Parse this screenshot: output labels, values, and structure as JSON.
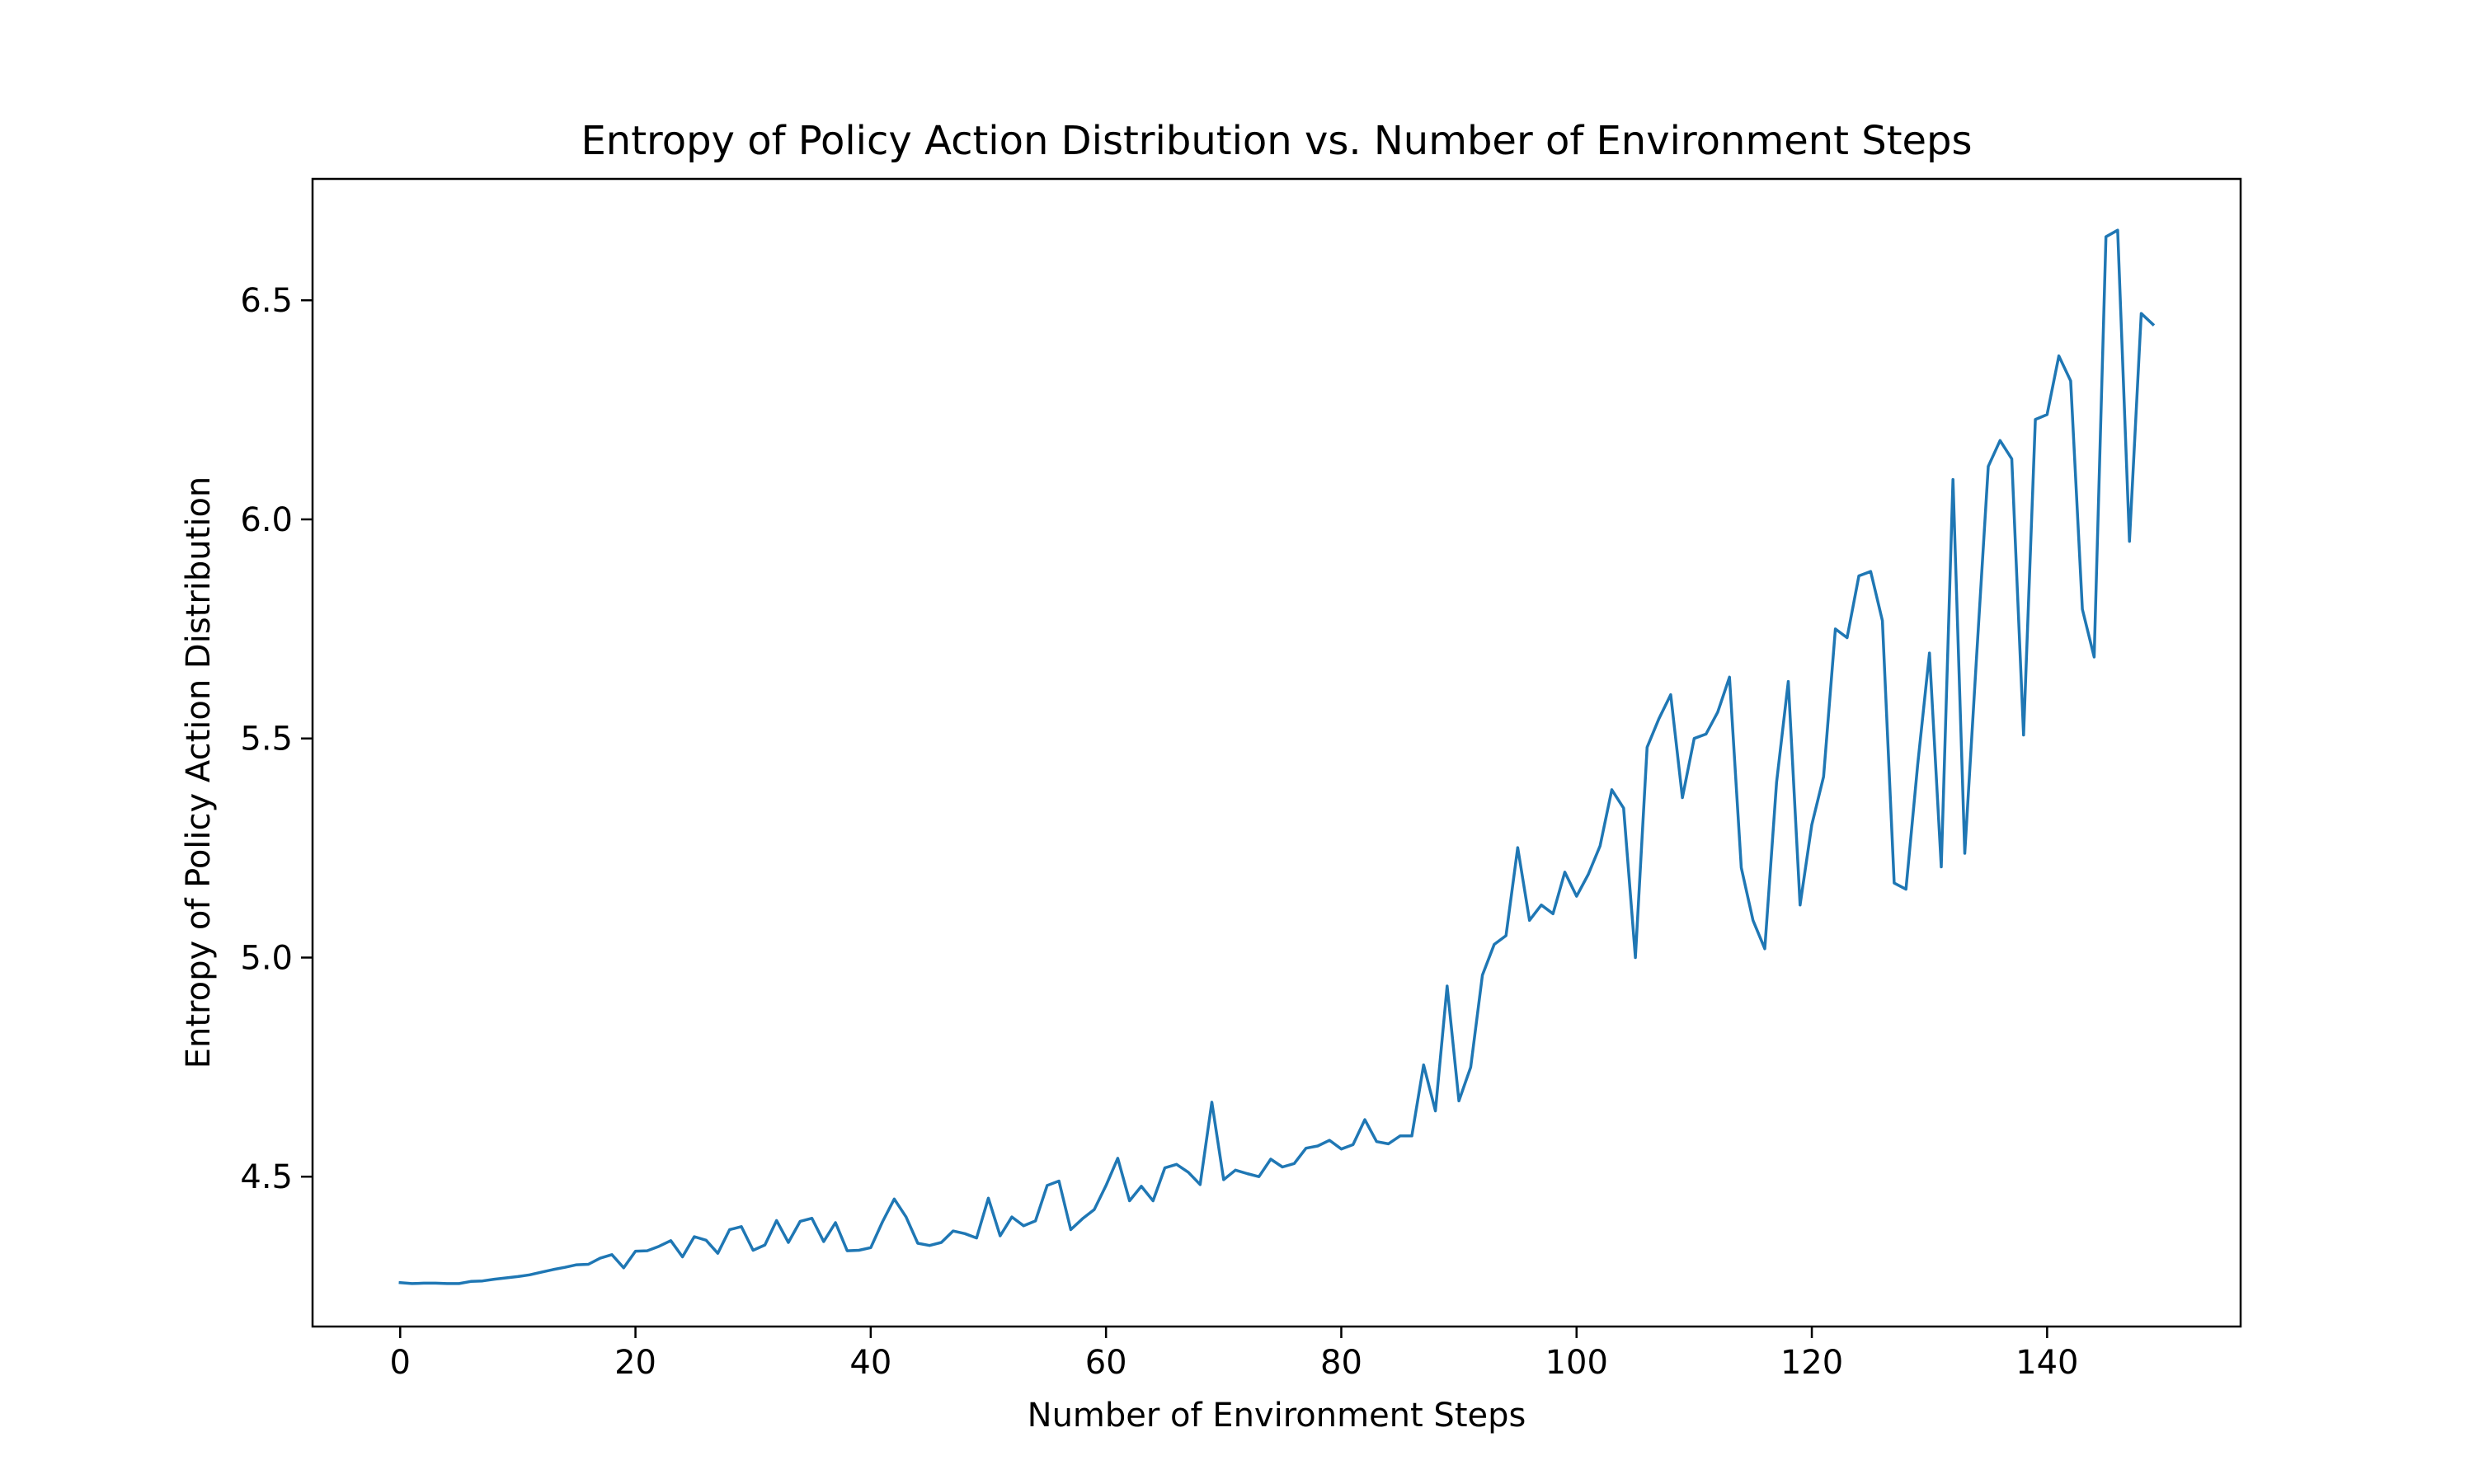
{
  "chart_data": {
    "type": "line",
    "title": "Entropy of Policy Action Distribution vs. Number of Environment Steps",
    "xlabel": "Number of Environment Steps",
    "ylabel": "Entropy of Policy Action Distribution",
    "xlim": [
      -7.45,
      156.45
    ],
    "ylim": [
      4.158,
      6.777
    ],
    "xticks": [
      0,
      20,
      40,
      60,
      80,
      100,
      120,
      140
    ],
    "yticks": [
      4.5,
      5.0,
      5.5,
      6.0,
      6.5
    ],
    "xtick_labels": [
      "0",
      "20",
      "40",
      "60",
      "80",
      "100",
      "120",
      "140"
    ],
    "ytick_labels": [
      "4.5",
      "5.0",
      "5.5",
      "6.0",
      "6.5"
    ],
    "grid": false,
    "line_color": "#1f77b4",
    "series": [
      {
        "x": [
          0,
          1,
          2,
          3,
          4,
          5,
          6,
          7,
          8,
          9,
          10,
          11,
          12,
          13,
          14,
          15,
          16,
          17,
          18,
          19,
          20,
          21,
          22,
          23,
          24,
          25,
          26,
          27,
          28,
          29,
          30,
          31,
          32,
          33,
          34,
          35,
          36,
          37,
          38,
          39,
          40,
          41,
          42,
          43,
          44,
          45,
          46,
          47,
          48,
          49,
          50,
          51,
          52,
          53,
          54,
          55,
          56,
          57,
          58,
          59,
          60,
          61,
          62,
          63,
          64,
          65,
          66,
          67,
          68,
          69,
          70,
          71,
          72,
          73,
          74,
          75,
          76,
          77,
          78,
          79,
          80,
          81,
          82,
          83,
          84,
          85,
          86,
          87,
          88,
          89,
          90,
          91,
          92,
          93,
          94,
          95,
          96,
          97,
          98,
          99,
          100,
          101,
          102,
          103,
          104,
          105,
          106,
          107,
          108,
          109,
          110,
          111,
          112,
          113,
          114,
          115,
          116,
          117,
          118,
          119,
          120,
          121,
          122,
          123,
          124,
          125,
          126,
          127,
          128,
          129,
          130,
          131,
          132,
          133,
          134,
          135,
          136,
          137,
          138,
          139,
          140,
          141,
          142,
          143,
          144,
          145,
          146,
          147,
          148,
          149
        ],
        "values": [
          4.258,
          4.256,
          4.257,
          4.257,
          4.256,
          4.256,
          4.261,
          4.262,
          4.266,
          4.269,
          4.272,
          4.276,
          4.282,
          4.288,
          4.293,
          4.299,
          4.3,
          4.314,
          4.322,
          4.292,
          4.33,
          4.331,
          4.341,
          4.354,
          4.317,
          4.363,
          4.355,
          4.325,
          4.379,
          4.386,
          4.332,
          4.344,
          4.4,
          4.35,
          4.398,
          4.405,
          4.352,
          4.395,
          4.331,
          4.332,
          4.338,
          4.397,
          4.449,
          4.408,
          4.348,
          4.343,
          4.35,
          4.376,
          4.37,
          4.36,
          4.451,
          4.365,
          4.408,
          4.388,
          4.399,
          4.48,
          4.49,
          4.379,
          4.404,
          4.425,
          4.48,
          4.542,
          4.445,
          4.478,
          4.445,
          4.52,
          4.528,
          4.51,
          4.482,
          4.67,
          4.493,
          4.515,
          4.507,
          4.5,
          4.54,
          4.522,
          4.53,
          4.565,
          4.57,
          4.583,
          4.563,
          4.573,
          4.63,
          4.58,
          4.575,
          4.593,
          4.593,
          4.755,
          4.65,
          4.935,
          4.673,
          4.75,
          4.96,
          5.03,
          5.05,
          5.251,
          5.085,
          5.12,
          5.1,
          5.195,
          5.14,
          5.19,
          5.255,
          5.383,
          5.341,
          5.0,
          5.48,
          5.545,
          5.6,
          5.365,
          5.5,
          5.51,
          5.56,
          5.64,
          5.205,
          5.085,
          5.02,
          5.4,
          5.63,
          5.12,
          5.303,
          5.413,
          5.75,
          5.73,
          5.871,
          5.881,
          5.769,
          5.17,
          5.156,
          5.44,
          5.695,
          5.207,
          6.091,
          5.238,
          5.686,
          6.121,
          6.18,
          6.138,
          5.508,
          6.228,
          6.239,
          6.373,
          6.316,
          5.795,
          5.686,
          6.645,
          6.66,
          5.95,
          6.47,
          6.445
        ]
      }
    ]
  }
}
